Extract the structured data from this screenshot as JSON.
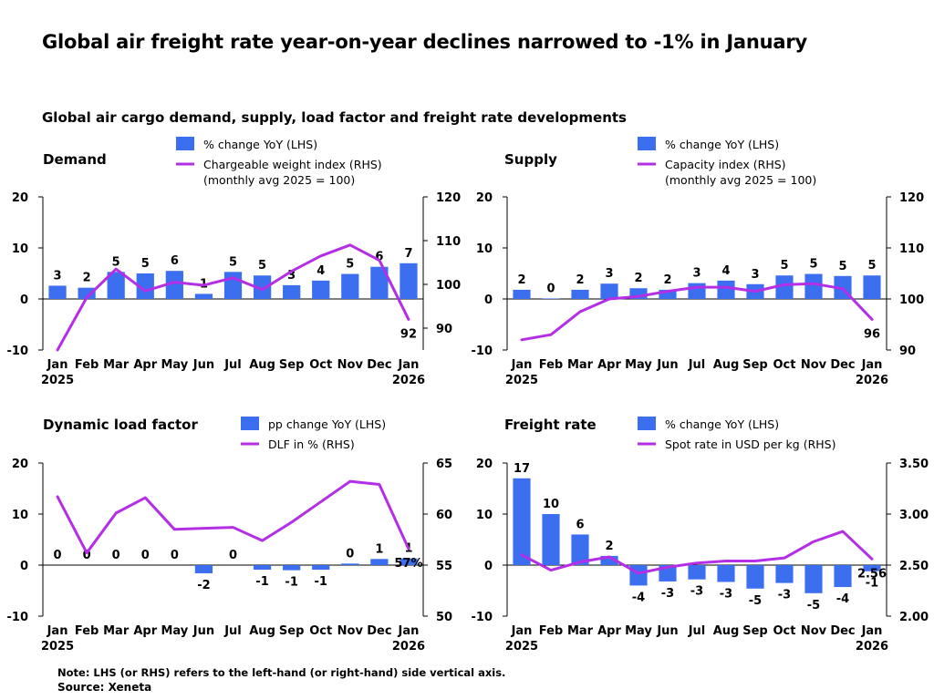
{
  "main_title": "Global air freight rate year-on-year declines narrowed to -1% in January",
  "subtitle": "Global air cargo demand, supply, load factor and freight rate developments",
  "note": "Note: LHS (or RHS) refers to the left-hand (or right-hand) side vertical axis.",
  "source": "Source: Xeneta",
  "colors": {
    "bar": "#3b6ff0",
    "line": "#b42ee6",
    "axis": "#000000"
  },
  "chart_data": [
    {
      "type": "bar",
      "title": "Demand",
      "categories": [
        "Jan",
        "Feb",
        "Mar",
        "Apr",
        "May",
        "Jun",
        "Jul",
        "Aug",
        "Sep",
        "Oct",
        "Nov",
        "Dec",
        "Jan"
      ],
      "year_labels": [
        "2025",
        "2026"
      ],
      "lhs": {
        "ylim": [
          -10,
          20
        ],
        "ticks": [
          "-10",
          "0",
          "10",
          "20"
        ]
      },
      "rhs": {
        "ylim": [
          85,
          120
        ],
        "ticks": [
          "90",
          "100",
          "110",
          "120"
        ]
      },
      "series": [
        {
          "name": "% change YoY (LHS)",
          "axis": "lhs",
          "type": "bar",
          "values": [
            2.6,
            2.2,
            5.3,
            5.0,
            5.5,
            1.0,
            5.3,
            4.6,
            2.7,
            3.6,
            4.9,
            6.3,
            7.0
          ],
          "labels": [
            "3",
            "2",
            "5",
            "5",
            "6",
            "1",
            "5",
            "5",
            "3",
            "4",
            "5",
            "6",
            "7"
          ]
        },
        {
          "name": "Chargeable weight index (RHS)\n(monthly avg 2025 = 100)",
          "axis": "rhs",
          "type": "line",
          "values": [
            85,
            97,
            103.5,
            98.5,
            100.5,
            99.8,
            101.5,
            98.8,
            103,
            106.5,
            109,
            105.5,
            92
          ],
          "end_label": "92"
        }
      ]
    },
    {
      "type": "bar",
      "title": "Supply",
      "categories": [
        "Jan",
        "Feb",
        "Mar",
        "Apr",
        "May",
        "Jun",
        "Jul",
        "Aug",
        "Sep",
        "Oct",
        "Nov",
        "Dec",
        "Jan"
      ],
      "year_labels": [
        "2025",
        "2026"
      ],
      "lhs": {
        "ylim": [
          -10,
          20
        ],
        "ticks": [
          "-10",
          "0",
          "10",
          "20"
        ]
      },
      "rhs": {
        "ylim": [
          90,
          120
        ],
        "ticks": [
          "90",
          "100",
          "110",
          "120"
        ]
      },
      "series": [
        {
          "name": "% change YoY (LHS)",
          "axis": "lhs",
          "type": "bar",
          "values": [
            1.8,
            0.1,
            1.8,
            3.0,
            2.1,
            1.8,
            3.1,
            3.6,
            2.9,
            4.6,
            4.9,
            4.5,
            4.6
          ],
          "labels": [
            "2",
            "0",
            "2",
            "3",
            "2",
            "2",
            "3",
            "4",
            "3",
            "5",
            "5",
            "5",
            "5"
          ]
        },
        {
          "name": "Capacity index (RHS)\n(monthly avg 2025 = 100)",
          "axis": "rhs",
          "type": "line",
          "values": [
            92,
            93,
            97.5,
            100,
            100.5,
            101.5,
            102.3,
            102.3,
            101.5,
            102.8,
            103,
            102,
            96
          ],
          "end_label": "96"
        }
      ]
    },
    {
      "type": "bar",
      "title": "Dynamic load factor",
      "categories": [
        "Jan",
        "Feb",
        "Mar",
        "Apr",
        "May",
        "Jun",
        "Jul",
        "Aug",
        "Sep",
        "Oct",
        "Nov",
        "Dec",
        "Jan"
      ],
      "year_labels": [
        "2025",
        "2026"
      ],
      "lhs": {
        "ylim": [
          -10,
          20
        ],
        "ticks": [
          "-10",
          "0",
          "10",
          "20"
        ]
      },
      "rhs": {
        "ylim": [
          50,
          65
        ],
        "ticks": [
          "50",
          "55",
          "60",
          "65"
        ]
      },
      "series": [
        {
          "name": "pp change YoY (LHS)",
          "axis": "lhs",
          "type": "bar",
          "values": [
            0,
            0,
            0,
            0,
            0,
            -1.6,
            0,
            -0.9,
            -1.0,
            -0.9,
            0.3,
            1.2,
            1.3
          ],
          "labels": [
            "0",
            "0",
            "0",
            "0",
            "0",
            "-2",
            "0",
            "-1",
            "-1",
            "-1",
            "0",
            "1",
            "1"
          ]
        },
        {
          "name": "DLF in % (RHS)",
          "axis": "rhs",
          "type": "line",
          "values": [
            61.7,
            56.2,
            60.1,
            61.6,
            58.5,
            58.6,
            58.7,
            57.4,
            59.2,
            61.2,
            63.2,
            62.9,
            56.6
          ],
          "end_label": "57%"
        }
      ]
    },
    {
      "type": "bar",
      "title": "Freight rate",
      "categories": [
        "Jan",
        "Feb",
        "Mar",
        "Apr",
        "May",
        "Jun",
        "Jul",
        "Aug",
        "Sep",
        "Oct",
        "Nov",
        "Dec",
        "Jan"
      ],
      "year_labels": [
        "2025",
        "2026"
      ],
      "lhs": {
        "ylim": [
          -10,
          20
        ],
        "ticks": [
          "-10",
          "0",
          "10",
          "20"
        ]
      },
      "rhs": {
        "ylim": [
          2.0,
          3.5
        ],
        "ticks": [
          "2.00",
          "2.50",
          "3.00",
          "3.50"
        ]
      },
      "series": [
        {
          "name": "% change YoY (LHS)",
          "axis": "lhs",
          "type": "bar",
          "values": [
            17,
            10,
            6,
            1.8,
            -4,
            -3.2,
            -2.8,
            -3.3,
            -4.6,
            -3.5,
            -5.5,
            -4.3,
            -1.2
          ],
          "labels": [
            "17",
            "10",
            "6",
            "2",
            "-4",
            "-3",
            "-3",
            "-3",
            "-5",
            "-3",
            "-5",
            "-4",
            "-1"
          ]
        },
        {
          "name": "Spot rate in USD per kg (RHS)",
          "axis": "rhs",
          "type": "line",
          "values": [
            2.6,
            2.45,
            2.53,
            2.58,
            2.42,
            2.48,
            2.52,
            2.54,
            2.54,
            2.57,
            2.73,
            2.83,
            2.56
          ],
          "end_label": "2.56"
        }
      ]
    }
  ]
}
